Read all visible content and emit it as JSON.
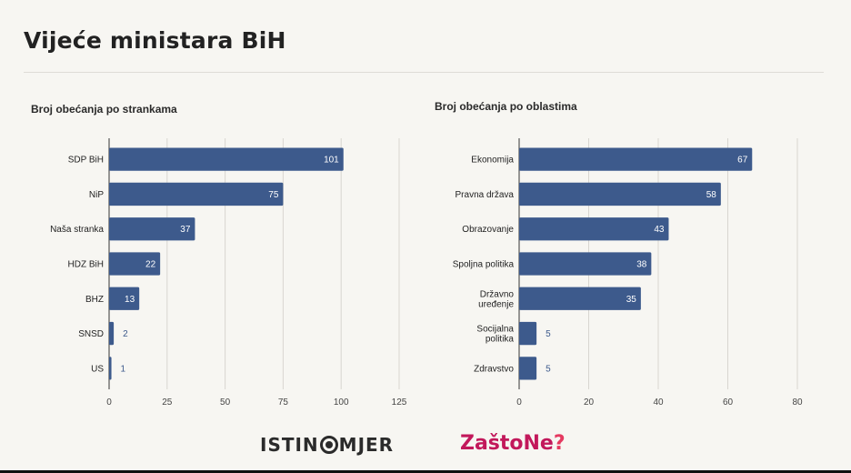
{
  "page": {
    "title": "Vijeće ministara BiH",
    "logo_left": "ISTIN◉MJER",
    "logo_left_before": "ISTIN",
    "logo_left_after": "MJER",
    "logo_right": "ZaštoNe?",
    "logo_right_main": "ZaštoNe",
    "logo_right_mark": "?"
  },
  "colors": {
    "bar": "#3d5a8c",
    "grid": "#d8d6d0",
    "axis": "#555555",
    "label_inside": "#ffffff",
    "label_outside": "#3d5a8c"
  },
  "chart_data": [
    {
      "type": "bar",
      "orientation": "horizontal",
      "title": "Broj obećanja po strankama",
      "categories": [
        "SDP BiH",
        "NiP",
        "Naša stranka",
        "HDZ BiH",
        "BHZ",
        "SNSD",
        "US"
      ],
      "values": [
        101,
        75,
        37,
        22,
        13,
        2,
        1
      ],
      "xlim": [
        0,
        125
      ],
      "ticks": [
        0,
        25,
        50,
        75,
        100,
        125
      ],
      "grid": true
    },
    {
      "type": "bar",
      "orientation": "horizontal",
      "title": "Broj obećanja po oblastima",
      "categories": [
        "Ekonomija",
        "Pravna država",
        "Obrazovanje",
        "Spoljna politika",
        "Državno uređenje",
        "Socijalna politika",
        "Zdravstvo"
      ],
      "category_lines": [
        [
          "Ekonomija"
        ],
        [
          "Pravna država"
        ],
        [
          "Obrazovanje"
        ],
        [
          "Spoljna politika"
        ],
        [
          "Državno",
          "uređenje"
        ],
        [
          "Socijalna",
          "politika"
        ],
        [
          "Zdravstvo"
        ]
      ],
      "values": [
        67,
        58,
        43,
        38,
        35,
        5,
        5
      ],
      "xlim": [
        0,
        80
      ],
      "ticks": [
        0,
        20,
        40,
        60,
        80
      ],
      "grid": true
    }
  ]
}
